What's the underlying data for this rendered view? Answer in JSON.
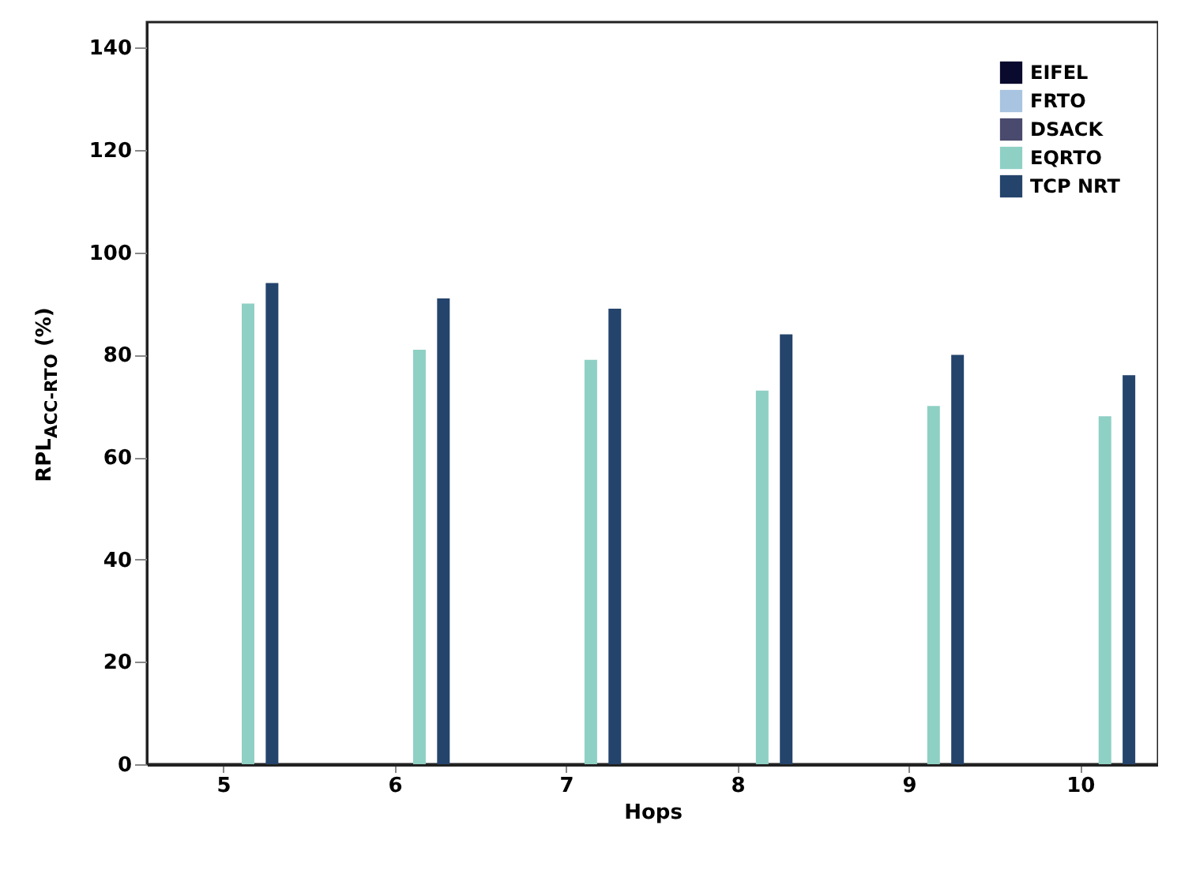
{
  "chart_data": {
    "type": "bar",
    "xlabel": "Hops",
    "ylabel": "RPL$_{ACC-RTO}$ (%)",
    "categories": [
      "5",
      "6",
      "7",
      "8",
      "9",
      "10"
    ],
    "series": [
      {
        "name": "EIFEL",
        "color": "#0a0a2e",
        "values": [
          0,
          0,
          0,
          0,
          0,
          0
        ]
      },
      {
        "name": "FRTO",
        "color": "#a8c4e0",
        "values": [
          0,
          0,
          0,
          0,
          0,
          0
        ]
      },
      {
        "name": "DSACK",
        "color": "#4a4a6e",
        "values": [
          0,
          0,
          0,
          0,
          0,
          0
        ]
      },
      {
        "name": "EQRTO",
        "color": "#8fd0c4",
        "values": [
          90,
          81,
          79,
          73,
          70,
          68
        ]
      },
      {
        "name": "TCP NRT",
        "color": "#24446c",
        "values": [
          94,
          91,
          89,
          84,
          80,
          76
        ]
      }
    ],
    "ylim": [
      0,
      145
    ],
    "yticks": [
      0,
      20,
      40,
      60,
      80,
      100,
      120,
      140
    ],
    "grid": false,
    "legend": "top right"
  }
}
